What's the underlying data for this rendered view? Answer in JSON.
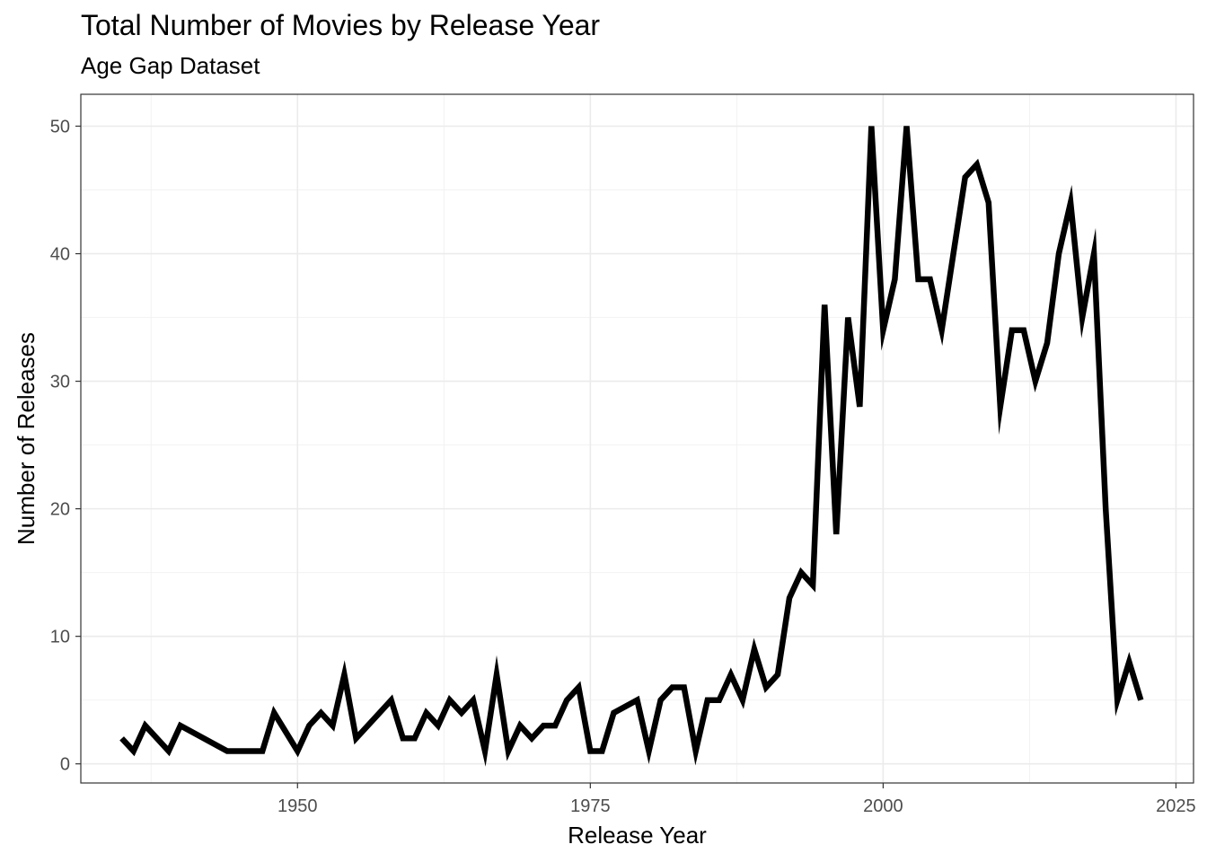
{
  "chart_data": {
    "type": "line",
    "title": "Total Number of Movies by Release Year",
    "subtitle": "Age Gap Dataset",
    "xlabel": "Release Year",
    "ylabel": "Number of Releases",
    "xlim": [
      1931.5,
      2026.5
    ],
    "ylim": [
      -1.5,
      52.5
    ],
    "x_ticks": [
      1950,
      1975,
      2000,
      2025
    ],
    "y_ticks": [
      0,
      10,
      20,
      30,
      40,
      50
    ],
    "grid": true,
    "line_color": "#000000",
    "series": [
      {
        "x": [
          1935,
          1936,
          1937,
          1938,
          1939,
          1940,
          1944,
          1945,
          1946,
          1947,
          1948,
          1950,
          1951,
          1952,
          1953,
          1954,
          1955,
          1957,
          1958,
          1959,
          1960,
          1961,
          1962,
          1963,
          1964,
          1965,
          1966,
          1967,
          1968,
          1969,
          1970,
          1971,
          1972,
          1973,
          1974,
          1975,
          1976,
          1977,
          1979,
          1980,
          1981,
          1982,
          1983,
          1984,
          1985,
          1986,
          1987,
          1988,
          1989,
          1990,
          1991,
          1992,
          1993,
          1994,
          1995,
          1996,
          1997,
          1998,
          1999,
          2000,
          2001,
          2002,
          2003,
          2004,
          2005,
          2006,
          2007,
          2008,
          2009,
          2010,
          2011,
          2012,
          2013,
          2014,
          2015,
          2016,
          2017,
          2018,
          2019,
          2020,
          2021,
          2022
        ],
        "y": [
          2,
          1,
          3,
          2,
          1,
          3,
          1,
          1,
          1,
          1,
          4,
          1,
          3,
          4,
          3,
          7,
          2,
          4,
          5,
          2,
          2,
          4,
          3,
          5,
          4,
          5,
          1,
          7,
          1,
          3,
          2,
          3,
          3,
          5,
          6,
          1,
          1,
          4,
          5,
          1,
          5,
          6,
          6,
          1,
          5,
          5,
          7,
          5,
          9,
          6,
          7,
          13,
          15,
          14,
          36,
          18,
          35,
          28,
          50,
          34,
          38,
          50,
          38,
          38,
          34,
          40,
          46,
          47,
          44,
          28,
          34,
          34,
          30,
          33,
          40,
          44,
          35,
          40,
          20,
          5,
          8,
          5
        ]
      }
    ]
  }
}
